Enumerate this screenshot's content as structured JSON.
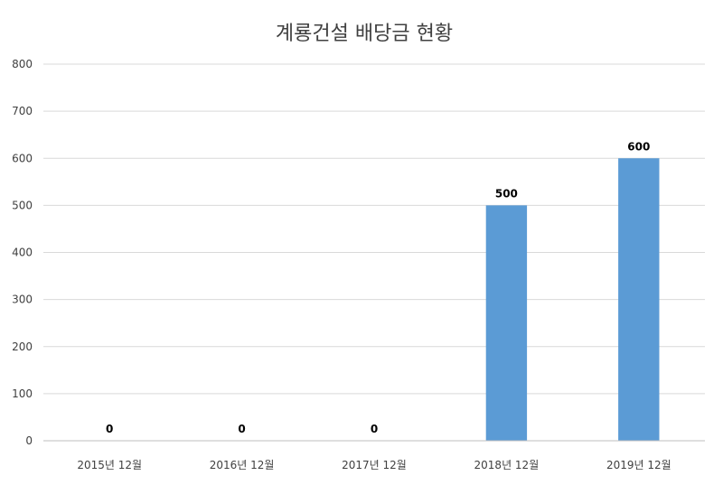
{
  "chart_data": {
    "type": "bar",
    "title": "계룡건설 배당금 현황",
    "categories": [
      "2015년 12월",
      "2016년 12월",
      "2017년 12월",
      "2018년 12월",
      "2019년 12월"
    ],
    "values": [
      0,
      0,
      0,
      500,
      600
    ],
    "data_labels": [
      "0",
      "0",
      "0",
      "500",
      "600"
    ],
    "xlabel": "",
    "ylabel": "",
    "ylim": [
      0,
      800
    ],
    "y_ticks": [
      0,
      100,
      200,
      300,
      400,
      500,
      600,
      700,
      800
    ],
    "y_tick_labels": [
      "0",
      "100",
      "200",
      "300",
      "400",
      "500",
      "600",
      "700",
      "800"
    ],
    "grid": true,
    "legend": "none",
    "bar_color": "#5b9bd5"
  }
}
